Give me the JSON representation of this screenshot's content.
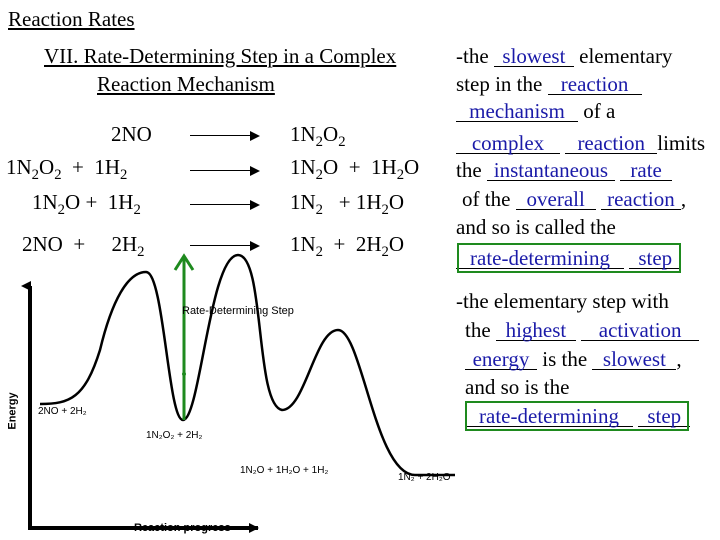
{
  "slide": {
    "title": "Reaction Rates",
    "heading_line1": "VII.  Rate-Determining Step in a Complex",
    "heading_line2": "Reaction Mechanism"
  },
  "mechanism": {
    "step1": {
      "reactants": "2NO",
      "products_main": "1N",
      "products_sub1": "2",
      "products_main2": "O",
      "products_sub2": "2"
    },
    "step2": {
      "r1": "1N",
      "r1s": "2",
      "r2": "O",
      "r2s": "2",
      "plus1": "+",
      "r3": "1H",
      "r3s": "2",
      "p1": "1N",
      "p1s": "2",
      "p2": "O",
      "plus2": "+",
      "p3": "1H",
      "p3s": "2",
      "p4": "O"
    },
    "step3": {
      "r1": "1N",
      "r1s": "2",
      "r2": "O",
      "plus1": "+",
      "r3": "1H",
      "r3s": "2",
      "p1": "1N",
      "p1s": "2",
      "plus2": "+",
      "p2": "1H",
      "p2s": "2",
      "p3": "O"
    },
    "overall": {
      "r1": "2NO",
      "plus1": "+",
      "r2": "2H",
      "r2s": "2",
      "p1": "1N",
      "p1s": "2",
      "plus2": "+",
      "p2": "2H",
      "p2s": "2",
      "p3": "O"
    }
  },
  "notes1": {
    "t1": "-the",
    "b1": "slowest",
    "t2": "elementary",
    "t3": "step in the",
    "b2": "reaction",
    "b3": "mechanism",
    "t4": "of a",
    "b4": "complex",
    "b5": "reaction",
    "t5": "limits",
    "t6": "the",
    "b6": "instantaneous",
    "b7": "rate",
    "t7": "of the",
    "b8": "overall",
    "b9": "reaction",
    "t8": ",",
    "t9": "and so is called the",
    "b10": "rate-determining",
    "b11": "step"
  },
  "notes2": {
    "t1": "-the elementary step with",
    "t2": "the",
    "b1": "highest",
    "b2": "activation",
    "b3": "energy",
    "t3": "is the",
    "b4": "slowest",
    "t4": ",",
    "t5": "and so is the",
    "b5": "rate-determining",
    "b6": "step"
  },
  "diagram": {
    "title": "Rate-Determining Step",
    "y_axis_label": "Energy",
    "x_axis_label": "Reaction progress",
    "level1": "2NO + 2H₂",
    "level2": "1N₂O₂ + 2H₂",
    "level3": "1N₂O + 1H₂O + 1H₂",
    "level4": "1N₂ + 2H₂O",
    "colors": {
      "curve": "#000000",
      "highlight_arrow": "#1e8a1e",
      "highlight_box": "#1e8a1e",
      "answer_text": "#1a1aa8"
    }
  }
}
